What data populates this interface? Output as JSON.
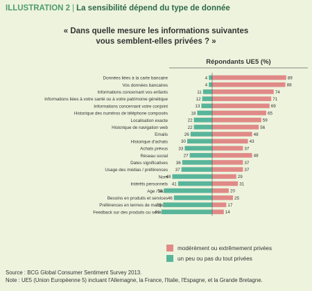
{
  "header": {
    "label": "ILLUSTRATION 2",
    "title": "La sensibilité dépend du type de donnée"
  },
  "question": {
    "line1": "« Dans quelle mesure les informations suivantes",
    "line2": "vous semblent-elles privées ? »"
  },
  "chart_data": {
    "type": "bar",
    "title": "Répondants UE5 (%)",
    "categories": [
      "Données liées à la carte bancaire",
      "Vos données bancaires",
      "Informations concernant vos enfants",
      "Informations liées à votre santé ou à votre patrimoine génétique",
      "Informations concernant votre conjoint",
      "Historique des numéros de téléphone composés",
      "Localisation exacte",
      "Historique de navigation web",
      "Emails",
      "Historique d'achats",
      "Achats prévus",
      "Réseau social",
      "Dates significatives",
      "Usage des médias / préférences",
      "Nom",
      "Intérêts personnels",
      "Age / sexe",
      "Besoins en produits et services",
      "Préférences en termes de marques",
      "Feedback sur des produits ou services"
    ],
    "series": [
      {
        "name": "modérément ou extrêmement privées",
        "color": "#e08a88",
        "values": [
          89,
          88,
          74,
          71,
          69,
          65,
          59,
          56,
          48,
          43,
          37,
          48,
          37,
          37,
          29,
          31,
          20,
          25,
          17,
          14
        ]
      },
      {
        "name": "un peu ou pas du tout privées",
        "color": "#58b59a",
        "values": [
          4,
          4,
          11,
          12,
          13,
          18,
          22,
          22,
          26,
          30,
          33,
          27,
          36,
          37,
          48,
          41,
          58,
          46,
          59,
          61
        ]
      }
    ],
    "legend": "bottom-right"
  },
  "source": {
    "line1": "Source : BCG Global Consumer Sentiment Survey 2013.",
    "line2": "Note : UE5 (Union Européenne 5) incluant l'Allemagne, la France, l'Italie, l'Espagne, et la Grande Bretagne."
  }
}
